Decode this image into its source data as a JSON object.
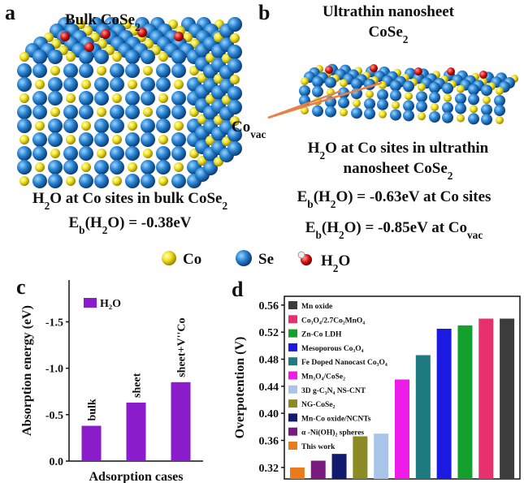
{
  "panel_a": {
    "label": "a",
    "title": [
      "Bulk CoSe",
      "2"
    ],
    "caption": [
      "H",
      "2",
      "O at Co sites in bulk CoSe",
      "2"
    ],
    "energy": [
      "E",
      "b",
      "(H",
      "2",
      "O) = -0.38eV"
    ]
  },
  "panel_b": {
    "label": "b",
    "title": "Ultrathin nanosheet",
    "title_line2": [
      "CoSe",
      "2"
    ],
    "vacancy": [
      "Co",
      "vac"
    ],
    "caption_line1": [
      "H",
      "2",
      "O at Co sites in ultrathin"
    ],
    "caption_line2": [
      "nanosheet CoSe",
      "2"
    ],
    "energy_co": [
      "E",
      "b",
      "(H",
      "2",
      "O) = -0.63eV at Co sites"
    ],
    "energy_vac": [
      "E",
      "b",
      "(H",
      "2",
      "O) = -0.85eV at Co",
      "vac"
    ]
  },
  "legend": {
    "co": "Co",
    "se": "Se",
    "h2o": [
      "H",
      "2",
      "O"
    ]
  },
  "chart_data": [
    {
      "type": "bar",
      "panel_label": "c",
      "ylabel": "Absorption energy (eV)",
      "xlabel": "Adsorption cases",
      "categories": [
        "bulk",
        "sheet",
        "sheet+V''Co"
      ],
      "series": [
        {
          "name": "H₂O",
          "color": "#8a1ccc",
          "values": [
            -0.38,
            -0.63,
            -0.85
          ]
        }
      ],
      "ylim": [
        0,
        -1.95
      ],
      "yticks": [
        {
          "value": 0,
          "label": "0.0"
        },
        -0.5,
        {
          "value": -1,
          "label": "-1.0"
        },
        -1.5
      ],
      "legend": "upper left"
    },
    {
      "type": "bar",
      "panel_label": "d",
      "ylabel": "Overpotention (V)",
      "series": [
        {
          "name": "Mn oxide",
          "color": "#3c3c3c",
          "values": [
            0.54
          ]
        },
        {
          "name": "Co₃O₄/2.7Co₂MnO₄",
          "color": "#e8306e",
          "values": [
            0.54
          ]
        },
        {
          "name": "Zn-Co LDH",
          "color": "#14a02c",
          "values": [
            0.53
          ]
        },
        {
          "name": "Mesoporous Co₃O₄",
          "color": "#1a1ae0",
          "values": [
            0.525
          ]
        },
        {
          "name": "Fe Doped Nanocast Co₃O₄",
          "color": "#1c7a80",
          "values": [
            0.486
          ]
        },
        {
          "name": "Mn₃O₄/CoSe₂",
          "color": "#ee1ce8",
          "values": [
            0.45
          ]
        },
        {
          "name": "3D g-C₃N₄ NS-CNT",
          "color": "#a8c4e8",
          "values": [
            0.37
          ]
        },
        {
          "name": "NG-CoSe₂",
          "color": "#8c8a24",
          "values": [
            0.366
          ]
        },
        {
          "name": "Mn-Co oxide/NCNTs",
          "color": "#121a70",
          "values": [
            0.34
          ]
        },
        {
          "name": "α -Ni(OH)₂ spheres",
          "color": "#7a1a80",
          "values": [
            0.33
          ]
        },
        {
          "name": "This work",
          "color": "#e87c1c",
          "values": [
            0.32
          ]
        }
      ],
      "ylim": [
        0.303,
        0.573
      ],
      "yticks": [
        0.32,
        0.36,
        {
          "value": 0.4,
          "label": "0.40"
        },
        0.44,
        0.48,
        0.52,
        0.56
      ],
      "legend": "upper left"
    }
  ]
}
